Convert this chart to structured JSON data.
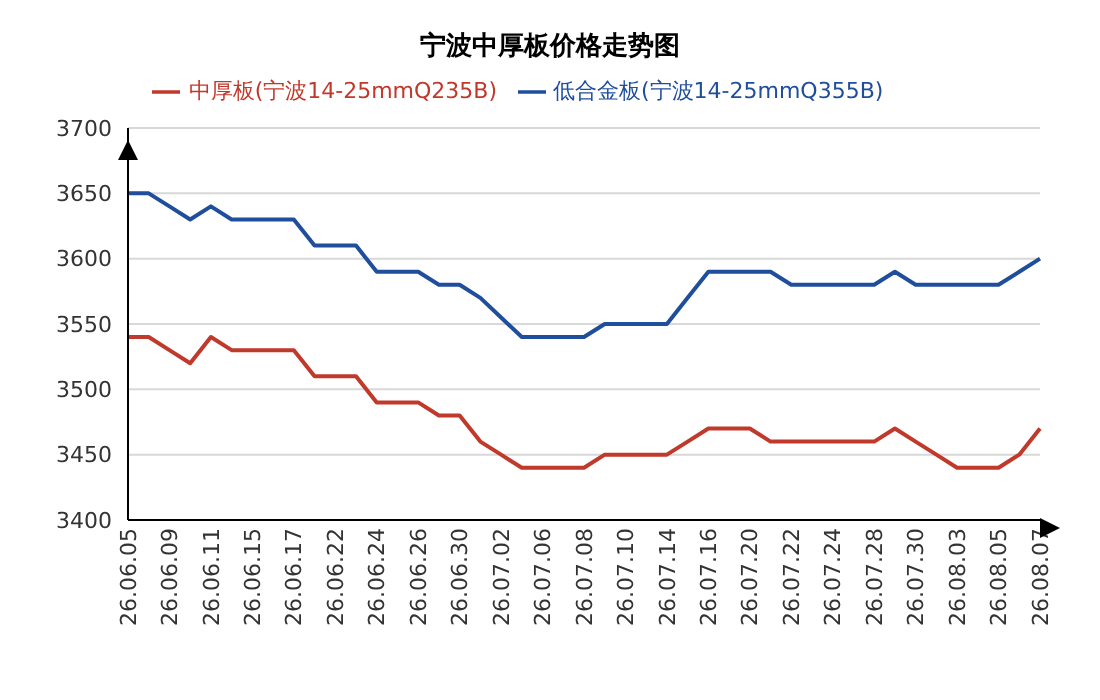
{
  "chart_data": {
    "type": "line",
    "title": "宁波中厚板价格走势图",
    "categories": [
      "26.06.05",
      null,
      "26.06.09",
      null,
      "26.06.11",
      null,
      "26.06.15",
      null,
      "26.06.17",
      null,
      "26.06.22",
      null,
      "26.06.24",
      null,
      "26.06.26",
      null,
      "26.06.30",
      null,
      "26.07.02",
      null,
      "26.07.06",
      null,
      "26.07.08",
      null,
      "26.07.10",
      null,
      "26.07.14",
      null,
      "26.07.16",
      null,
      "26.07.20",
      null,
      "26.07.22",
      null,
      "26.07.24",
      null,
      "26.07.28",
      null,
      "26.07.30",
      null,
      "26.08.03",
      null,
      "26.08.05",
      null,
      "26.08.07"
    ],
    "series": [
      {
        "name": "中厚板(宁波14-25mmQ235B)",
        "color": "#c0392b",
        "values": [
          3540,
          3540,
          3530,
          3520,
          3540,
          3530,
          3530,
          3530,
          3530,
          3510,
          3510,
          3510,
          3490,
          3490,
          3490,
          3480,
          3480,
          3460,
          3450,
          3440,
          3440,
          3440,
          3440,
          3450,
          3450,
          3450,
          3450,
          3460,
          3470,
          3470,
          3470,
          3460,
          3460,
          3460,
          3460,
          3460,
          3460,
          3470,
          3460,
          3450,
          3440,
          3440,
          3440,
          3450,
          3470
        ]
      },
      {
        "name": "低合金板(宁波14-25mmQ355B)",
        "color": "#1f4e9c",
        "values": [
          3650,
          3650,
          3640,
          3630,
          3640,
          3630,
          3630,
          3630,
          3630,
          3610,
          3610,
          3610,
          3590,
          3590,
          3590,
          3580,
          3580,
          3570,
          3555,
          3540,
          3540,
          3540,
          3540,
          3550,
          3550,
          3550,
          3550,
          3570,
          3590,
          3590,
          3590,
          3590,
          3580,
          3580,
          3580,
          3580,
          3580,
          3590,
          3580,
          3580,
          3580,
          3580,
          3580,
          3590,
          3600
        ]
      }
    ],
    "ylim": [
      3400,
      3700
    ],
    "yticks": [
      3400,
      3450,
      3500,
      3550,
      3600,
      3650,
      3700
    ],
    "grid": "y",
    "legend": "top",
    "marker": "none",
    "line_style": "solid"
  }
}
